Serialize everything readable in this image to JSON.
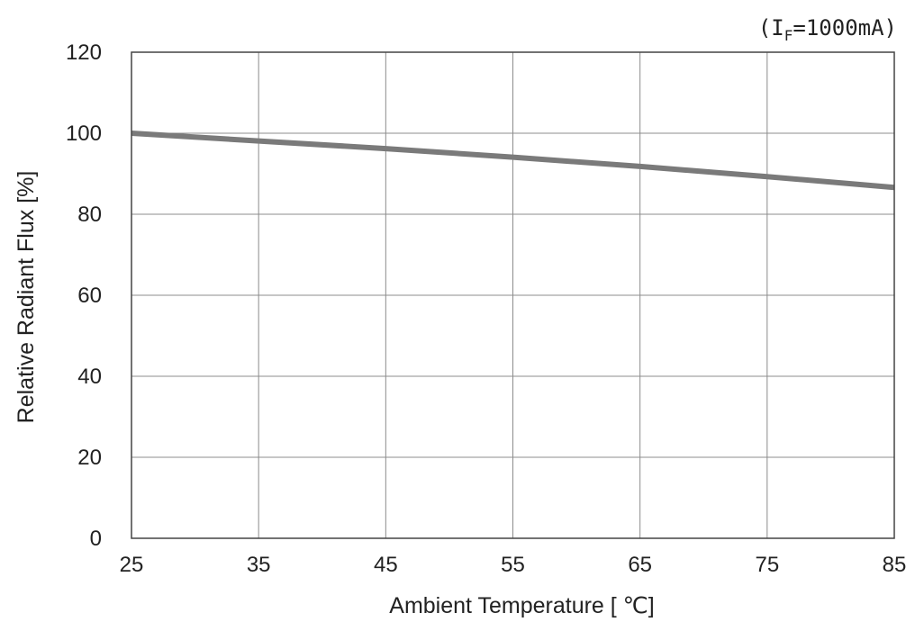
{
  "chart_data": {
    "type": "line",
    "condition": {
      "prefix": "(I",
      "subscript": "F",
      "suffix": "=1000mA)"
    },
    "xlabel": "Ambient Temperature [ ℃]",
    "ylabel": "Relative Radiant Flux [%]",
    "xlim": [
      25,
      85
    ],
    "ylim": [
      0,
      120
    ],
    "xticks": [
      "25",
      "35",
      "45",
      "55",
      "65",
      "75",
      "85"
    ],
    "yticks": [
      "0",
      "20",
      "40",
      "60",
      "80",
      "100",
      "120"
    ],
    "grid": true,
    "series": [
      {
        "color": "#7a7a7a",
        "x": [
          25,
          35,
          45,
          55,
          65,
          75,
          85
        ],
        "y": [
          100,
          98.1,
          96.2,
          94.1,
          91.8,
          89.3,
          86.6
        ]
      }
    ]
  }
}
